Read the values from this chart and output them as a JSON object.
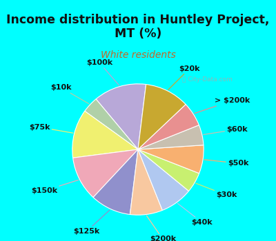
{
  "title": "Income distribution in Huntley Project,\nMT (%)",
  "subtitle": "White residents",
  "bg_cyan": "#00FFFF",
  "bg_chart_top_left": "#e8f5f0",
  "bg_chart_bottom_right": "#d0eee8",
  "watermark": "ⓘ City-Data.com",
  "labels": [
    "$100k",
    "$10k",
    "$75k",
    "$150k",
    "$125k",
    "$200k",
    "$40k",
    "$30k",
    "$50k",
    "$60k",
    "> $200k",
    "$20k"
  ],
  "values": [
    13,
    4,
    12,
    11,
    10,
    8,
    8,
    5,
    7,
    5,
    6,
    11
  ],
  "colors": [
    "#b8a8d8",
    "#b0d0a8",
    "#f0f070",
    "#f0a8b8",
    "#9090cc",
    "#f8c8a0",
    "#b0c8f0",
    "#c8f070",
    "#f8b070",
    "#c8c0b0",
    "#e89090",
    "#c8a830"
  ],
  "startangle": 83,
  "label_fontsize": 8.0,
  "title_fontsize": 12.5,
  "subtitle_fontsize": 10,
  "subtitle_color": "#c06828"
}
